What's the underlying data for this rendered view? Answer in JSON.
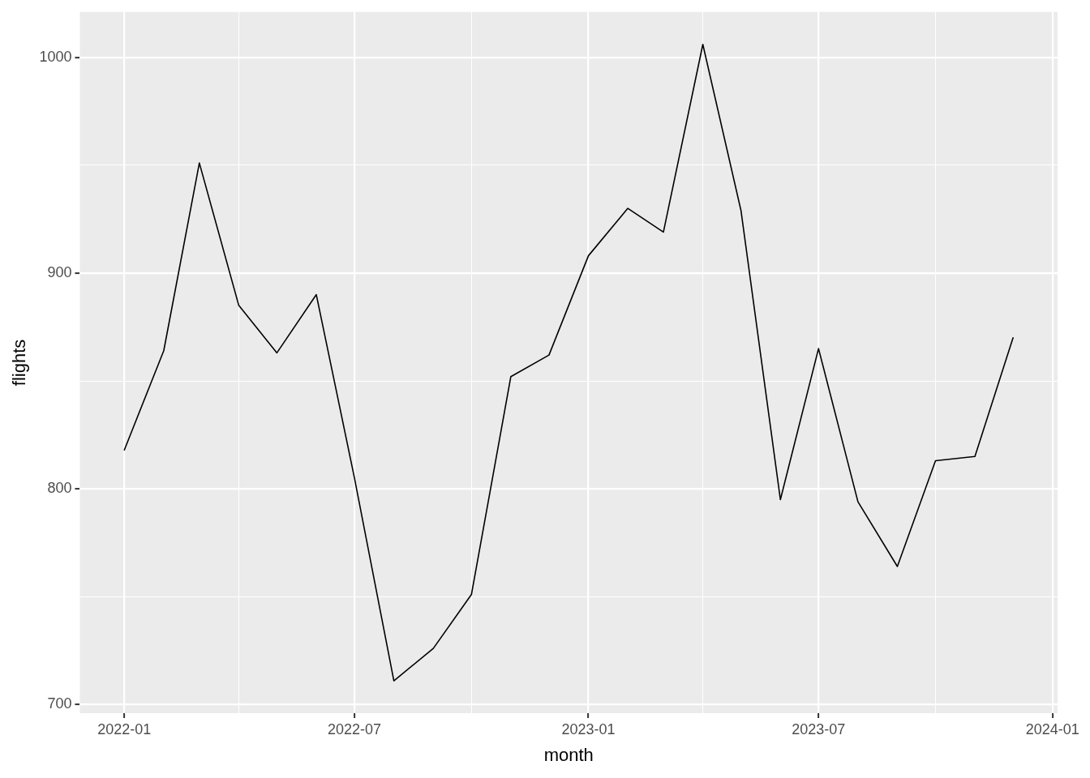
{
  "chart_data": {
    "type": "line",
    "xlabel": "month",
    "ylabel": "flights",
    "x": [
      "2022-01",
      "2022-02",
      "2022-03",
      "2022-04",
      "2022-05",
      "2022-06",
      "2022-07",
      "2022-08",
      "2022-09",
      "2022-10",
      "2022-11",
      "2022-12",
      "2023-01",
      "2023-02",
      "2023-03",
      "2023-04",
      "2023-05",
      "2023-06",
      "2023-07",
      "2023-08",
      "2023-09",
      "2023-10",
      "2023-11",
      "2023-12"
    ],
    "series": [
      {
        "color": "#000000",
        "values": [
          818,
          864,
          951,
          885,
          863,
          890,
          805,
          711,
          726,
          751,
          852,
          862,
          908,
          930,
          919,
          1006,
          929,
          795,
          865,
          794,
          764,
          813,
          815,
          870
        ]
      }
    ],
    "xlim": [
      "2021-11-27",
      "2024-01-05"
    ],
    "xticks": [
      "2022-01",
      {
        "value": "2022-04",
        "label": null
      },
      "2022-07",
      {
        "value": "2022-10",
        "label": null
      },
      "2023-01",
      {
        "value": "2023-04",
        "label": null
      },
      "2023-07",
      {
        "value": "2023-10",
        "label": null
      },
      "2024-01"
    ],
    "ylim": [
      696,
      1021
    ],
    "yticks": [
      700,
      {
        "value": 750,
        "label": null
      },
      800,
      {
        "value": 850,
        "label": null
      },
      900,
      {
        "value": 950,
        "label": null
      },
      1000
    ],
    "grid": true,
    "marker": "none",
    "line_style": "solid"
  }
}
